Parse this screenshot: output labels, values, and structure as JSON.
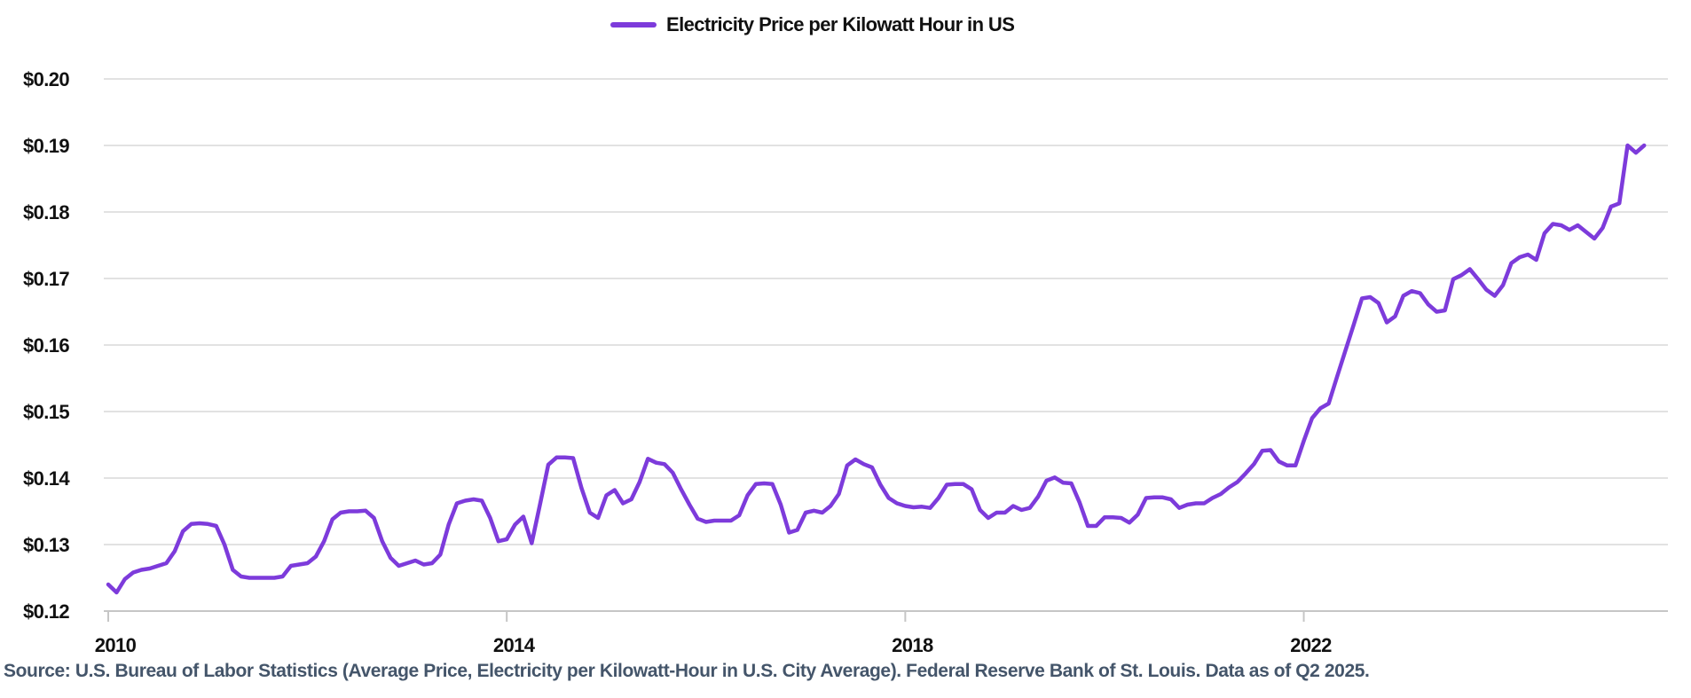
{
  "legend": {
    "label": "Electricity Price per Kilowatt Hour in US"
  },
  "source": {
    "text": "Source: U.S. Bureau of Labor Statistics (Average Price, Electricity per Kilowatt-Hour in U.S. City Average). Federal Reserve Bank of St. Louis. Data as of Q2 2025."
  },
  "colors": {
    "line": "#7d3bdb",
    "grid": "#d8d8d8",
    "axis": "#c6c6c6",
    "tick_label": "#111111",
    "source_text": "#44556a",
    "background": "#ffffff"
  },
  "chart_data": {
    "type": "line",
    "title": "Electricity Price per Kilowatt Hour in US",
    "unit": "USD per kilowatt-hour",
    "frequency": "monthly",
    "start": "2010-01",
    "end": "2025-06",
    "xlabel": "",
    "ylabel": "",
    "ylim": [
      0.12,
      0.205
    ],
    "grid": "horizontal",
    "legend_position": "top-center",
    "y_ticks": [
      {
        "value": 0.12,
        "label": "$0.12"
      },
      {
        "value": 0.13,
        "label": "$0.13"
      },
      {
        "value": 0.14,
        "label": "$0.14"
      },
      {
        "value": 0.15,
        "label": "$0.15"
      },
      {
        "value": 0.16,
        "label": "$0.16"
      },
      {
        "value": 0.17,
        "label": "$0.17"
      },
      {
        "value": 0.18,
        "label": "$0.18"
      },
      {
        "value": 0.19,
        "label": "$0.19"
      },
      {
        "value": 0.2,
        "label": "$0.20"
      }
    ],
    "x_ticks": [
      {
        "year": 2010,
        "label": "2010"
      },
      {
        "year": 2014,
        "label": "2014"
      },
      {
        "year": 2018,
        "label": "2018"
      },
      {
        "year": 2022,
        "label": "2022"
      }
    ],
    "series": [
      {
        "name": "Electricity Price per Kilowatt Hour in US",
        "values": [
          0.124,
          0.1228,
          0.1248,
          0.1258,
          0.1262,
          0.1264,
          0.1268,
          0.1272,
          0.129,
          0.132,
          0.1331,
          0.1332,
          0.1331,
          0.1328,
          0.13,
          0.1262,
          0.1252,
          0.125,
          0.125,
          0.125,
          0.125,
          0.1252,
          0.1268,
          0.127,
          0.1272,
          0.1282,
          0.1305,
          0.1338,
          0.1348,
          0.135,
          0.135,
          0.1351,
          0.134,
          0.1305,
          0.128,
          0.1268,
          0.1272,
          0.1276,
          0.127,
          0.1272,
          0.1285,
          0.133,
          0.1362,
          0.1366,
          0.1368,
          0.1366,
          0.134,
          0.1305,
          0.1308,
          0.133,
          0.1342,
          0.1302,
          0.136,
          0.142,
          0.1431,
          0.1431,
          0.143,
          0.1385,
          0.1348,
          0.134,
          0.1374,
          0.1382,
          0.1362,
          0.1368,
          0.1394,
          0.1429,
          0.1423,
          0.1421,
          0.1408,
          0.1383,
          0.136,
          0.1339,
          0.1334,
          0.1336,
          0.1336,
          0.1336,
          0.1344,
          0.1374,
          0.1391,
          0.1392,
          0.1391,
          0.136,
          0.1318,
          0.1322,
          0.1348,
          0.1351,
          0.1348,
          0.1358,
          0.1376,
          0.1419,
          0.1428,
          0.1421,
          0.1416,
          0.139,
          0.137,
          0.1362,
          0.1358,
          0.1356,
          0.1357,
          0.1355,
          0.137,
          0.139,
          0.1391,
          0.1391,
          0.1383,
          0.1352,
          0.134,
          0.1348,
          0.1348,
          0.1358,
          0.1352,
          0.1355,
          0.1372,
          0.1396,
          0.1401,
          0.1393,
          0.1392,
          0.1363,
          0.1328,
          0.1328,
          0.1341,
          0.1341,
          0.134,
          0.1333,
          0.1345,
          0.137,
          0.1371,
          0.1371,
          0.1368,
          0.1355,
          0.136,
          0.1362,
          0.1362,
          0.137,
          0.1376,
          0.1386,
          0.1394,
          0.1407,
          0.1421,
          0.1441,
          0.1442,
          0.1425,
          0.1419,
          0.1419,
          0.1456,
          0.149,
          0.1505,
          0.1512,
          0.1552,
          0.1591,
          0.163,
          0.167,
          0.1672,
          0.1663,
          0.1634,
          0.1643,
          0.1674,
          0.1681,
          0.1678,
          0.1661,
          0.165,
          0.1652,
          0.1699,
          0.1705,
          0.1714,
          0.1699,
          0.1683,
          0.1674,
          0.169,
          0.1723,
          0.1732,
          0.1736,
          0.1728,
          0.1768,
          0.1782,
          0.178,
          0.1773,
          0.178,
          0.177,
          0.176,
          0.1776,
          0.1808,
          0.1813,
          0.19,
          0.1889,
          0.19
        ]
      }
    ]
  }
}
